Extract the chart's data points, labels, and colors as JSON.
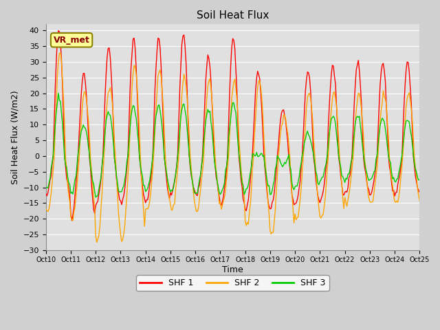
{
  "title": "Soil Heat Flux",
  "xlabel": "Time",
  "ylabel": "Soil Heat Flux (W/m2)",
  "ylim": [
    -30,
    42
  ],
  "yticks": [
    -30,
    -25,
    -20,
    -15,
    -10,
    -5,
    0,
    5,
    10,
    15,
    20,
    25,
    30,
    35,
    40
  ],
  "xlim": [
    0,
    360
  ],
  "xtick_positions": [
    0,
    24,
    48,
    72,
    96,
    120,
    144,
    168,
    192,
    216,
    240,
    264,
    288,
    312,
    336,
    360
  ],
  "xtick_labels": [
    "Oct 10",
    "Oct 11",
    "Oct 12",
    "Oct 13",
    "Oct 14",
    "Oct 15",
    "Oct 16",
    "Oct 17",
    "Oct 18",
    "Oct 19",
    "Oct 20",
    "Oct 21",
    "Oct 22",
    "Oct 23",
    "Oct 24",
    "Oct 25"
  ],
  "colors": {
    "SHF 1": "#FF0000",
    "SHF 2": "#FFA500",
    "SHF 3": "#00CC00"
  },
  "legend_labels": [
    "SHF 1",
    "SHF 2",
    "SHF 3"
  ],
  "plot_bg_color": "#E0E0E0",
  "fig_bg_color": "#D0D0D0",
  "grid_color": "#FFFFFF",
  "annotation_text": "VR_met",
  "annotation_box_facecolor": "#FFFF99",
  "annotation_box_edgecolor": "#8B8000",
  "annotation_text_color": "#8B0000",
  "linewidth": 1.0
}
